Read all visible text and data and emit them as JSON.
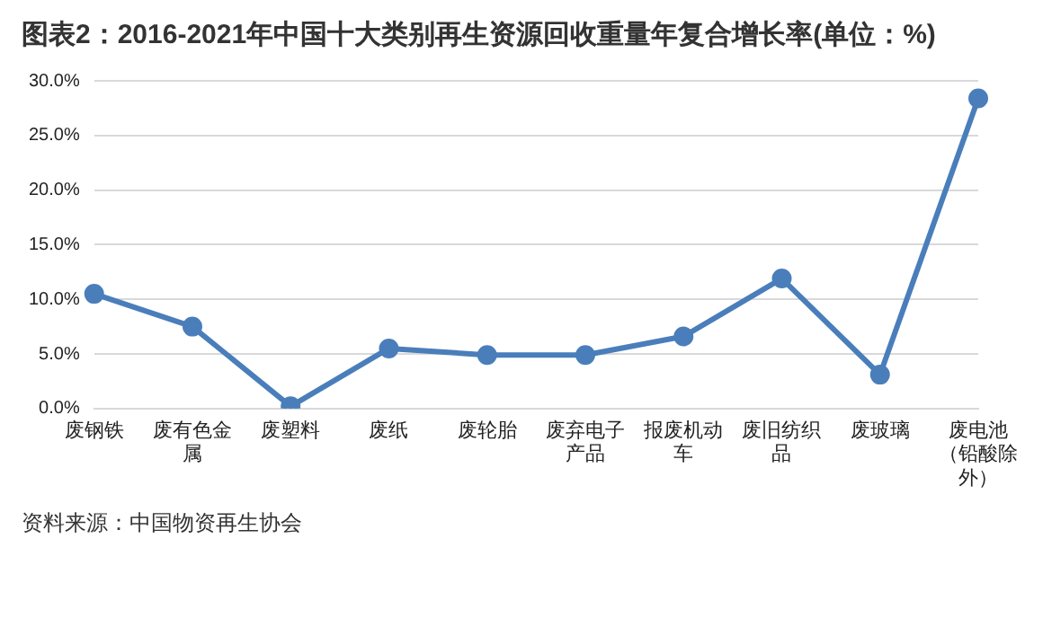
{
  "chart_data": {
    "type": "line",
    "title": "图表2：2016-2021年中国十大类别再生资源回收重量年复合增长率(单位：%)",
    "categories": [
      "废钢铁",
      "废有色金属",
      "废塑料",
      "废纸",
      "废轮胎",
      "废弃电子产品",
      "报废机动车",
      "废旧纺织品",
      "废玻璃",
      "废电池（铅酸除外）"
    ],
    "series": [
      {
        "color": "#4a7ebb",
        "values": [
          10.5,
          7.5,
          0.2,
          5.5,
          4.9,
          4.9,
          6.6,
          11.9,
          3.1,
          28.4
        ]
      }
    ],
    "ylim": [
      0,
      30
    ],
    "yticks": [
      {
        "value": 0,
        "label": "0.0%"
      },
      {
        "value": 5,
        "label": "5.0%"
      },
      {
        "value": 10,
        "label": "10.0%"
      },
      {
        "value": 15,
        "label": "15.0%"
      },
      {
        "value": 20,
        "label": "20.0%"
      },
      {
        "value": 25,
        "label": "25.0%"
      },
      {
        "value": 30,
        "label": "30.0%"
      }
    ],
    "grid": "y",
    "legend": false,
    "marker": "circle",
    "line_style": "solid",
    "annotations": [
      "资料来源：中国物资再生协会"
    ]
  }
}
